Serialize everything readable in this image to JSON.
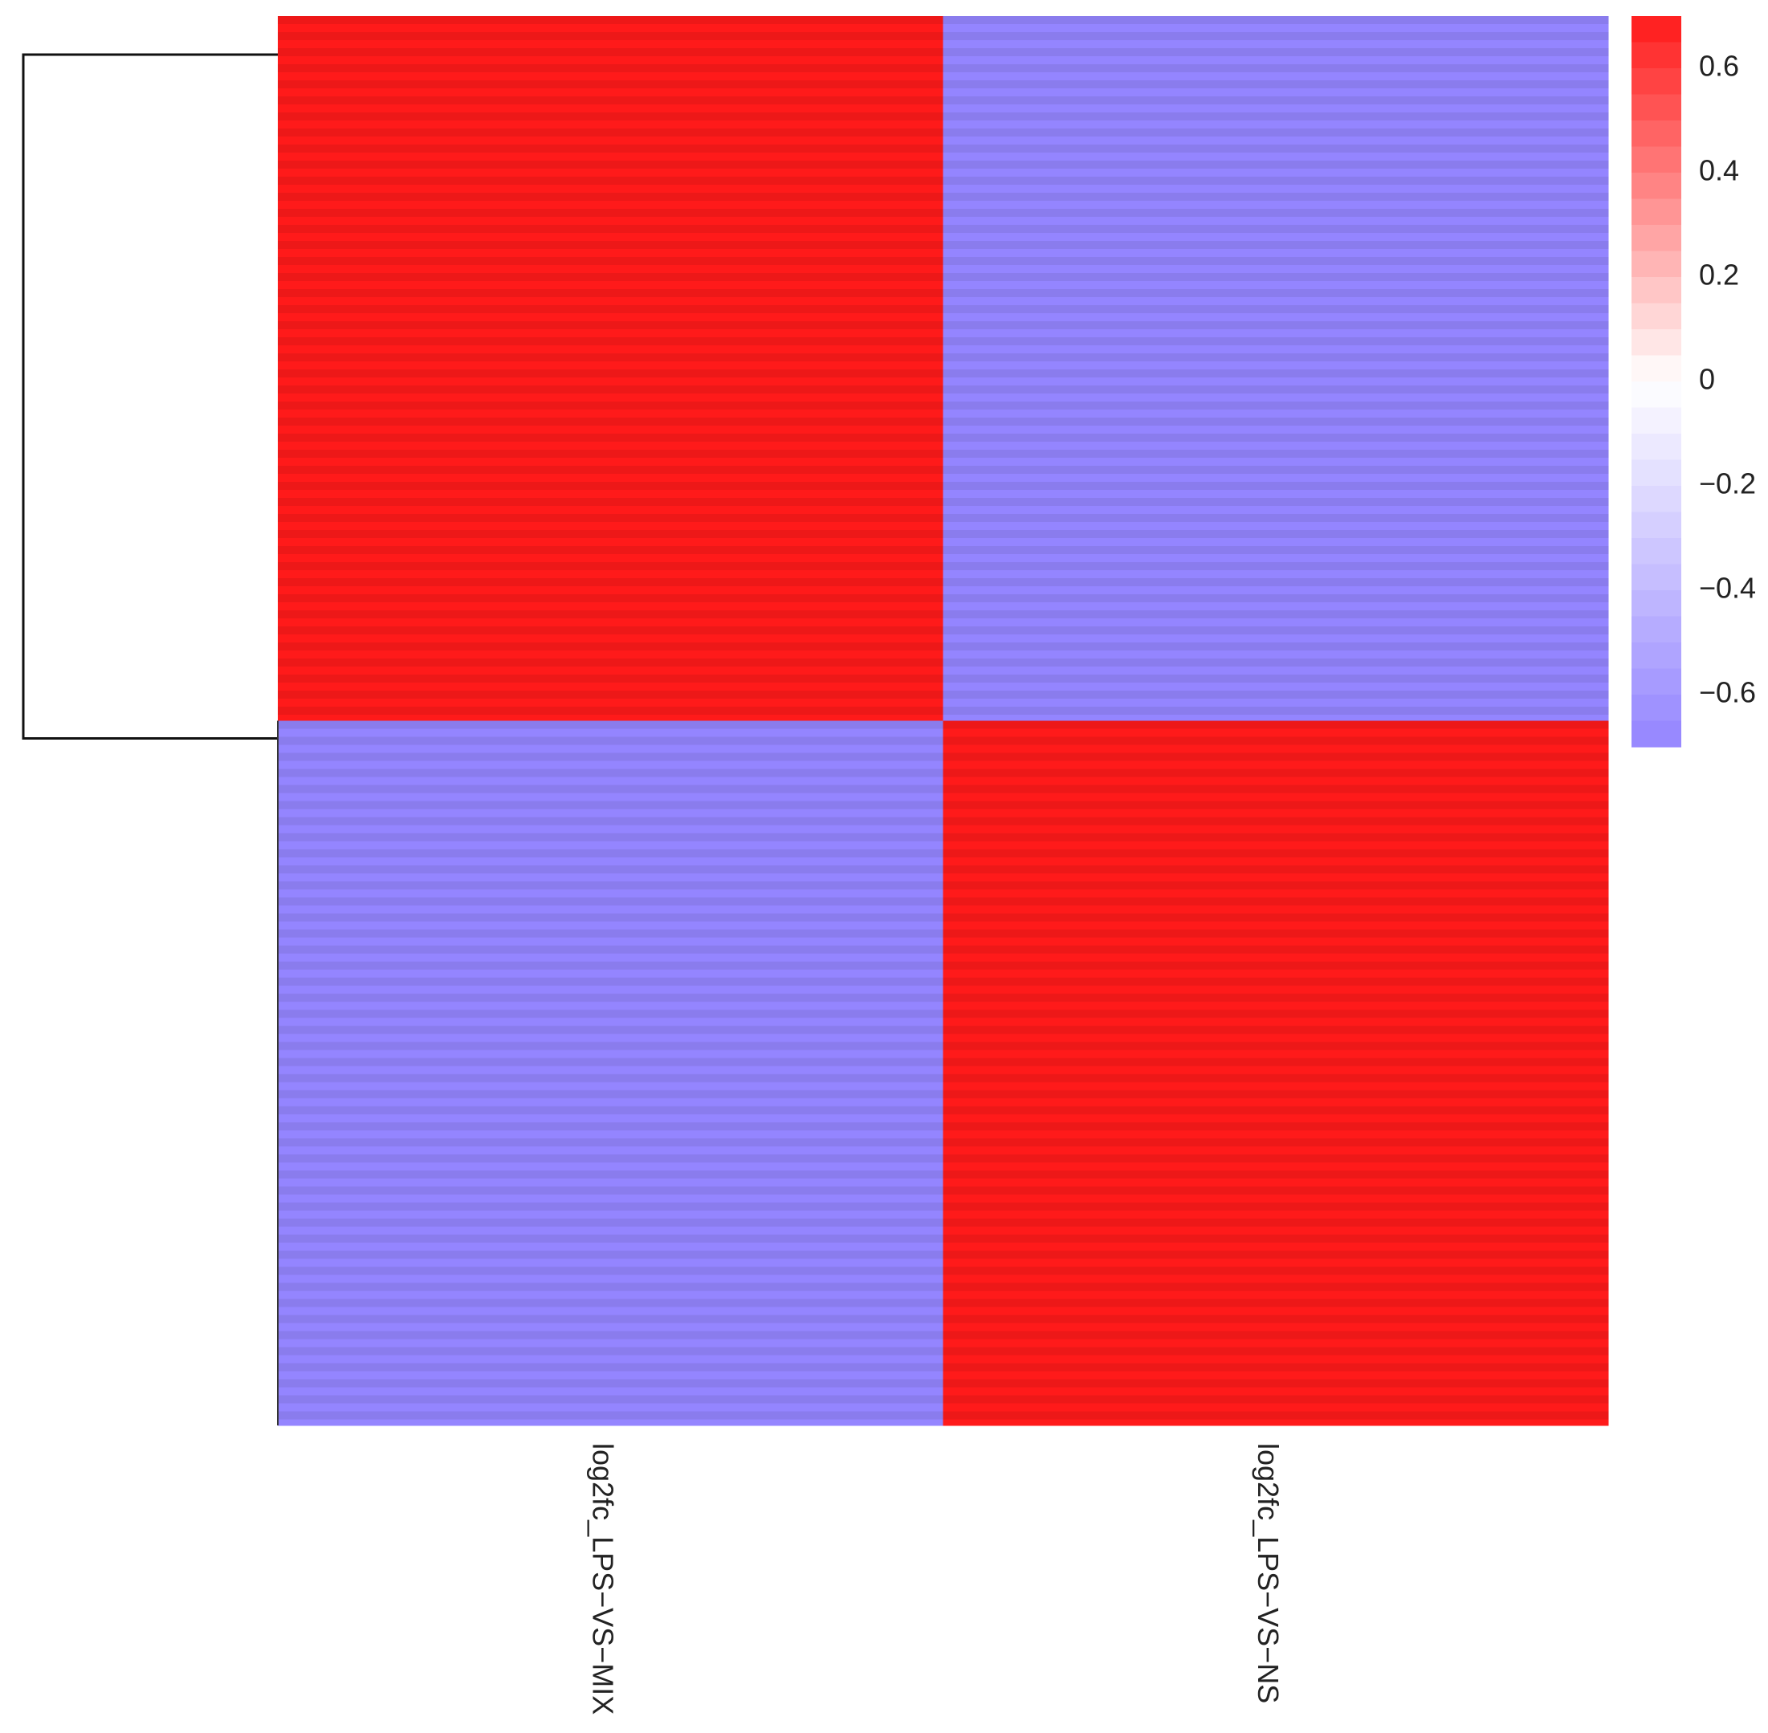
{
  "chart_data": {
    "type": "heatmap",
    "title": "",
    "columns": [
      "log2fc_LPS−VS−MIX",
      "log2fc_LPS−VS−NS"
    ],
    "row_clusters": [
      {
        "rows": "upper block",
        "values": [
          0.7,
          -0.7
        ]
      },
      {
        "rows": "lower block",
        "values": [
          -0.7,
          0.7
        ]
      }
    ],
    "color_scale": {
      "min": -0.7,
      "max": 0.7,
      "low_color": "#9485ff",
      "mid_color": "#ffffff",
      "high_color": "#ff1a1a",
      "ticks": [
        0.6,
        0.4,
        0.2,
        0,
        -0.2,
        -0.4,
        -0.6
      ],
      "tick_labels": [
        "0.6",
        "0.4",
        "0.2",
        "0",
        "−0.2",
        "−0.4",
        "−0.6"
      ]
    },
    "dendrogram": "rows",
    "legend_position": "right"
  }
}
